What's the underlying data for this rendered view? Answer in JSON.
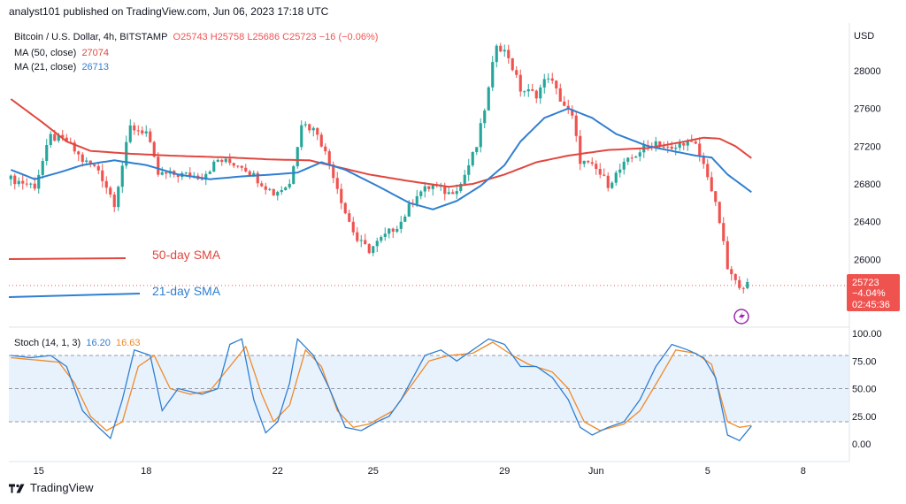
{
  "header": {
    "published": "analyst101 published on TradingView.com, Jun 06, 2023 17:18 UTC"
  },
  "legend": {
    "symbol": "Bitcoin / U.S. Dollar, 4h, BITSTAMP",
    "o": "O25743",
    "h": "H25758",
    "l": "L25686",
    "c": "C25723",
    "change": "−16 (−0.06%)",
    "ma50_label": "MA (50, close)",
    "ma50_value": "27074",
    "ma21_label": "MA (21, close)",
    "ma21_value": "26713",
    "stoch_label": "Stoch (14, 1, 3)",
    "stoch_k": "16.20",
    "stoch_d": "16.63"
  },
  "annotations": {
    "sma50": "50-day SMA",
    "sma21": "21-day SMA"
  },
  "price_badge": {
    "price": "25723",
    "change": "−4.04%",
    "countdown": "02:45:36"
  },
  "footer": {
    "brand": "TradingView"
  },
  "colors": {
    "up": "#26a69a",
    "down": "#ef5350",
    "ma50": "#e0473f",
    "ma21": "#2f7fd1",
    "stoch_k": "#2f7fd1",
    "stoch_d": "#ef8a2a",
    "band": "#d6e8fb"
  },
  "chart_data": {
    "type": "candlestick",
    "currency": "USD",
    "price_ticks": [
      "28000",
      "27600",
      "27200",
      "26800",
      "26400",
      "26000"
    ],
    "price_ylim": [
      25300,
      28450
    ],
    "stoch_ticks": [
      "100.00",
      "75.00",
      "50.00",
      "25.00",
      "0.00"
    ],
    "stoch_ylim": [
      -8,
      104
    ],
    "x_labels": [
      "15",
      "18",
      "22",
      "25",
      "29",
      "Jun",
      "5",
      "8"
    ],
    "x_label_bars": [
      7,
      34,
      67,
      91,
      124,
      147,
      175,
      199
    ],
    "bar_count": 210,
    "current_price": 25723,
    "anchors": [
      [
        0,
        26850
      ],
      [
        6,
        26780
      ],
      [
        10,
        27300
      ],
      [
        14,
        27250
      ],
      [
        18,
        27050
      ],
      [
        22,
        26950
      ],
      [
        26,
        26600
      ],
      [
        30,
        27400
      ],
      [
        34,
        27350
      ],
      [
        37,
        26900
      ],
      [
        42,
        26900
      ],
      [
        48,
        26880
      ],
      [
        52,
        27050
      ],
      [
        58,
        27000
      ],
      [
        62,
        26850
      ],
      [
        66,
        26700
      ],
      [
        70,
        26800
      ],
      [
        73,
        27450
      ],
      [
        77,
        27350
      ],
      [
        81,
        26900
      ],
      [
        84,
        26500
      ],
      [
        87,
        26200
      ],
      [
        90,
        26100
      ],
      [
        94,
        26250
      ],
      [
        98,
        26400
      ],
      [
        102,
        26700
      ],
      [
        106,
        26780
      ],
      [
        110,
        26700
      ],
      [
        113,
        26800
      ],
      [
        117,
        27200
      ],
      [
        120,
        27800
      ],
      [
        122,
        28300
      ],
      [
        125,
        28150
      ],
      [
        128,
        27800
      ],
      [
        132,
        27750
      ],
      [
        135,
        27950
      ],
      [
        138,
        27700
      ],
      [
        141,
        27500
      ],
      [
        143,
        27050
      ],
      [
        147,
        26950
      ],
      [
        150,
        26800
      ],
      [
        154,
        27000
      ],
      [
        158,
        27150
      ],
      [
        162,
        27250
      ],
      [
        166,
        27150
      ],
      [
        169,
        27250
      ],
      [
        172,
        27200
      ],
      [
        175,
        26900
      ],
      [
        178,
        26400
      ],
      [
        180,
        25900
      ],
      [
        182,
        25750
      ],
      [
        185,
        25723
      ]
    ],
    "ma50_anchors": [
      [
        0,
        27700
      ],
      [
        8,
        27450
      ],
      [
        14,
        27250
      ],
      [
        20,
        27150
      ],
      [
        30,
        27120
      ],
      [
        40,
        27100
      ],
      [
        55,
        27080
      ],
      [
        65,
        27060
      ],
      [
        75,
        27050
      ],
      [
        80,
        27000
      ],
      [
        90,
        26900
      ],
      [
        100,
        26830
      ],
      [
        110,
        26770
      ],
      [
        116,
        26800
      ],
      [
        124,
        26900
      ],
      [
        132,
        27030
      ],
      [
        140,
        27100
      ],
      [
        150,
        27160
      ],
      [
        160,
        27180
      ],
      [
        168,
        27240
      ],
      [
        174,
        27290
      ],
      [
        178,
        27280
      ],
      [
        182,
        27200
      ],
      [
        186,
        27074
      ]
    ],
    "ma21_anchors": [
      [
        0,
        26950
      ],
      [
        6,
        26850
      ],
      [
        12,
        26920
      ],
      [
        18,
        27000
      ],
      [
        26,
        27050
      ],
      [
        34,
        27000
      ],
      [
        42,
        26900
      ],
      [
        50,
        26850
      ],
      [
        58,
        26880
      ],
      [
        66,
        26900
      ],
      [
        72,
        26920
      ],
      [
        78,
        27030
      ],
      [
        84,
        26950
      ],
      [
        92,
        26780
      ],
      [
        100,
        26600
      ],
      [
        106,
        26530
      ],
      [
        112,
        26620
      ],
      [
        118,
        26780
      ],
      [
        124,
        27000
      ],
      [
        128,
        27250
      ],
      [
        134,
        27500
      ],
      [
        140,
        27600
      ],
      [
        146,
        27500
      ],
      [
        152,
        27330
      ],
      [
        160,
        27200
      ],
      [
        166,
        27150
      ],
      [
        172,
        27100
      ],
      [
        176,
        27080
      ],
      [
        180,
        26900
      ],
      [
        186,
        26713
      ]
    ],
    "stoch_k_anchors": [
      [
        0,
        80
      ],
      [
        5,
        78
      ],
      [
        10,
        80
      ],
      [
        14,
        70
      ],
      [
        18,
        30
      ],
      [
        22,
        15
      ],
      [
        25,
        5
      ],
      [
        28,
        40
      ],
      [
        31,
        85
      ],
      [
        35,
        80
      ],
      [
        38,
        30
      ],
      [
        42,
        50
      ],
      [
        48,
        45
      ],
      [
        52,
        50
      ],
      [
        55,
        90
      ],
      [
        58,
        95
      ],
      [
        61,
        40
      ],
      [
        64,
        10
      ],
      [
        67,
        20
      ],
      [
        70,
        55
      ],
      [
        72,
        95
      ],
      [
        76,
        80
      ],
      [
        80,
        50
      ],
      [
        84,
        15
      ],
      [
        88,
        12
      ],
      [
        92,
        20
      ],
      [
        95,
        25
      ],
      [
        98,
        40
      ],
      [
        101,
        60
      ],
      [
        104,
        80
      ],
      [
        108,
        85
      ],
      [
        112,
        75
      ],
      [
        116,
        85
      ],
      [
        120,
        95
      ],
      [
        124,
        90
      ],
      [
        128,
        70
      ],
      [
        132,
        70
      ],
      [
        136,
        60
      ],
      [
        140,
        40
      ],
      [
        143,
        15
      ],
      [
        146,
        8
      ],
      [
        150,
        15
      ],
      [
        154,
        20
      ],
      [
        158,
        40
      ],
      [
        162,
        70
      ],
      [
        166,
        90
      ],
      [
        170,
        85
      ],
      [
        174,
        78
      ],
      [
        177,
        60
      ],
      [
        180,
        8
      ],
      [
        183,
        3
      ],
      [
        186,
        16.2
      ]
    ],
    "stoch_d_anchors": [
      [
        0,
        78
      ],
      [
        6,
        76
      ],
      [
        12,
        74
      ],
      [
        16,
        55
      ],
      [
        20,
        25
      ],
      [
        24,
        12
      ],
      [
        28,
        20
      ],
      [
        32,
        70
      ],
      [
        36,
        80
      ],
      [
        40,
        50
      ],
      [
        45,
        45
      ],
      [
        50,
        48
      ],
      [
        55,
        70
      ],
      [
        59,
        88
      ],
      [
        63,
        45
      ],
      [
        66,
        20
      ],
      [
        70,
        35
      ],
      [
        74,
        85
      ],
      [
        78,
        70
      ],
      [
        82,
        30
      ],
      [
        86,
        15
      ],
      [
        90,
        18
      ],
      [
        96,
        30
      ],
      [
        100,
        50
      ],
      [
        105,
        75
      ],
      [
        110,
        80
      ],
      [
        116,
        82
      ],
      [
        121,
        92
      ],
      [
        126,
        80
      ],
      [
        130,
        72
      ],
      [
        136,
        65
      ],
      [
        140,
        50
      ],
      [
        144,
        20
      ],
      [
        148,
        12
      ],
      [
        154,
        18
      ],
      [
        158,
        30
      ],
      [
        163,
        60
      ],
      [
        167,
        85
      ],
      [
        172,
        82
      ],
      [
        176,
        72
      ],
      [
        180,
        20
      ],
      [
        183,
        15
      ],
      [
        186,
        16.63
      ]
    ]
  }
}
